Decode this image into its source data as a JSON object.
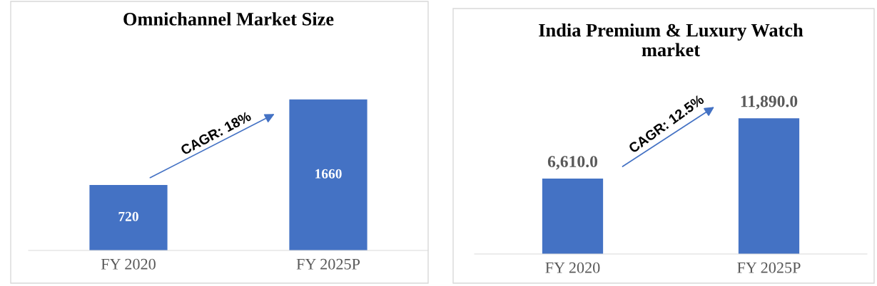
{
  "chart_data": [
    {
      "type": "bar",
      "title": "Omnichannel Market Size",
      "categories": [
        "FY 2020",
        "FY 2025P"
      ],
      "values": [
        720,
        1660
      ],
      "color": "#4472c4",
      "data_labels": true,
      "tick_labels": "x",
      "grid": false,
      "legend": false,
      "annotations": [
        "CAGR: 18%"
      ]
    },
    {
      "type": "bar",
      "title": "India Premium & Luxury Watch\nmarket",
      "categories": [
        "FY 2020",
        "FY 2025P"
      ],
      "values": [
        6610.0,
        11890.0
      ],
      "color": "#4472c4",
      "value_labels": [
        "6,610.0",
        "11,890.0"
      ],
      "tick_labels": "x",
      "grid": false,
      "legend": false,
      "annotations": [
        "CAGR: 12.5%"
      ]
    }
  ]
}
